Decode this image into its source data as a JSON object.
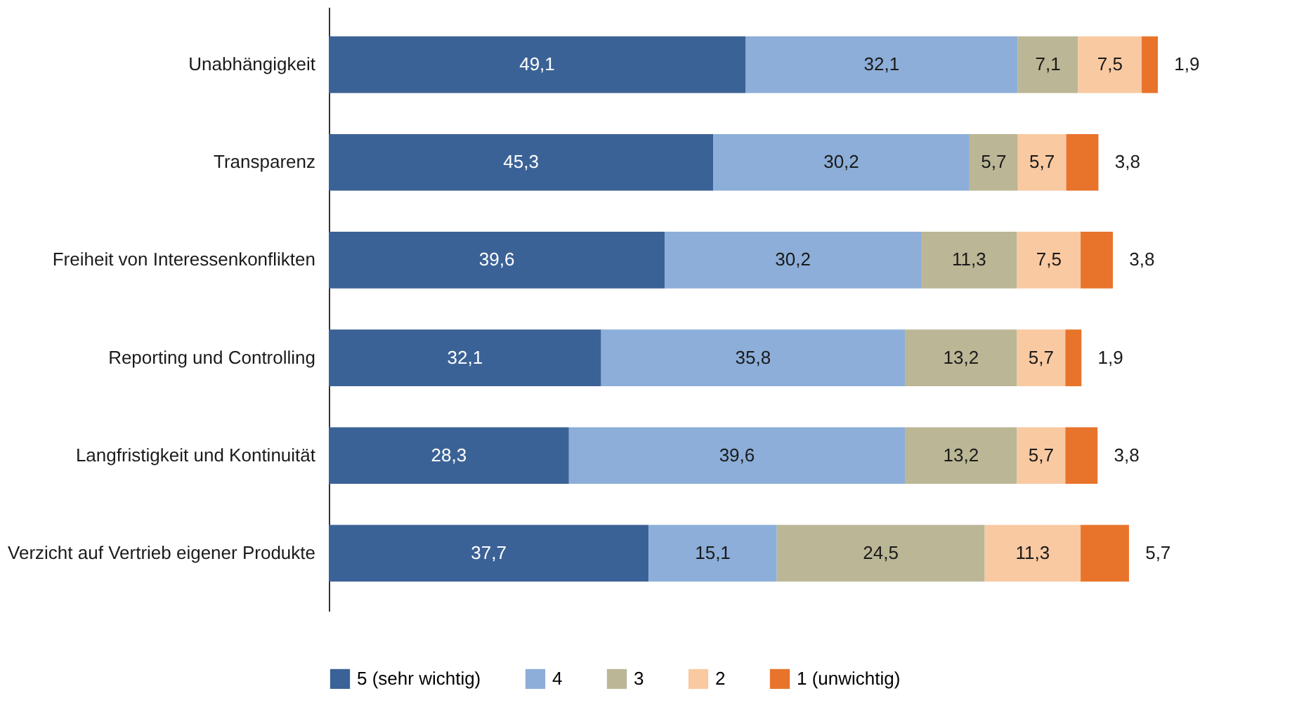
{
  "chart_data": {
    "type": "bar",
    "orientation": "horizontal",
    "stacked": true,
    "legend": "bottom",
    "grid": false,
    "categories": [
      "Unabhängigkeit",
      "Transparenz",
      "Freiheit von Interessenkonflikten",
      "Reporting und Controlling",
      "Langfristigkeit und Kontinuität",
      "Verzicht auf Vertrieb eigener Produkte"
    ],
    "series": [
      {
        "name": "5 (sehr wichtig)",
        "color": "#3b6296",
        "values": [
          49.1,
          45.3,
          39.6,
          32.1,
          28.3,
          37.7
        ],
        "value_labels": [
          "49,1",
          "45,3",
          "39,6",
          "32,1",
          "28,3",
          "37,7"
        ]
      },
      {
        "name": "4",
        "color": "#8caed8",
        "values": [
          32.1,
          30.2,
          30.2,
          35.8,
          39.6,
          15.1
        ],
        "value_labels": [
          "32,1",
          "30,2",
          "30,2",
          "35,8",
          "39,6",
          "15,1"
        ]
      },
      {
        "name": "3",
        "color": "#bbb695",
        "values": [
          7.1,
          5.7,
          11.3,
          13.2,
          13.2,
          24.5
        ],
        "value_labels": [
          "7,1",
          "5,7",
          "11,3",
          "13,2",
          "13,2",
          "24,5"
        ]
      },
      {
        "name": "2",
        "color": "#f9c9a1",
        "values": [
          7.5,
          5.7,
          7.5,
          5.7,
          5.7,
          11.3
        ],
        "value_labels": [
          "7,5",
          "5,7",
          "7,5",
          "5,7",
          "5,7",
          "11,3"
        ]
      },
      {
        "name": "1 (unwichtig)",
        "color": "#e8732b",
        "values": [
          1.9,
          3.8,
          3.8,
          1.9,
          3.8,
          5.7
        ],
        "value_labels": [
          "1,9",
          "3,8",
          "3,8",
          "1,9",
          "3,8",
          "5,7"
        ]
      }
    ]
  }
}
